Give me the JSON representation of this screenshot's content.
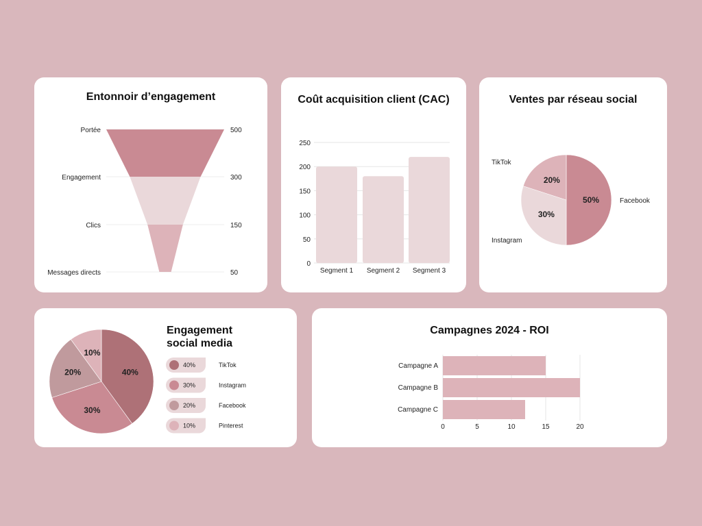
{
  "chart_data": [
    {
      "type": "funnel",
      "title": "Entonnoir d’engagement",
      "categories": [
        "Portée",
        "Engagement",
        "Clics",
        "Messages directs"
      ],
      "values": [
        500,
        300,
        150,
        50
      ],
      "colors": [
        "#c98a93",
        "#ead8da",
        "#ddb3b9",
        "#ddb3b9"
      ]
    },
    {
      "type": "bar",
      "title": "Coût acquisition client (CAC)",
      "categories": [
        "Segment 1",
        "Segment 2",
        "Segment 3"
      ],
      "values": [
        200,
        180,
        220
      ],
      "ylim": [
        0,
        250
      ],
      "yticks": [
        0,
        50,
        100,
        150,
        200,
        250
      ],
      "grid": true,
      "color": "#ead8da"
    },
    {
      "type": "pie",
      "title": "Ventes par réseau social",
      "categories": [
        "Facebook",
        "Instagram",
        "TikTok"
      ],
      "values": [
        50,
        30,
        20
      ],
      "labels": [
        "50%",
        "30%",
        "20%"
      ],
      "colors": [
        "#c98a93",
        "#ead8da",
        "#ddb3b9"
      ]
    },
    {
      "type": "pie",
      "title": "Engagement social media",
      "categories": [
        "TikTok",
        "Instagram",
        "Facebook",
        "Pinterest"
      ],
      "values": [
        40,
        30,
        20,
        10
      ],
      "labels": [
        "40%",
        "30%",
        "20%",
        "10%"
      ],
      "colors": [
        "#ae7177",
        "#c98a93",
        "#c09a9d",
        "#ddb3b9"
      ],
      "legend": "right"
    },
    {
      "type": "bar-horizontal",
      "title": "Campagnes 2024 - ROI",
      "categories": [
        "Campagne A",
        "Campagne B",
        "Campagne C"
      ],
      "values": [
        15,
        20,
        12
      ],
      "xlim": [
        0,
        20
      ],
      "xticks": [
        0,
        5,
        10,
        15,
        20
      ],
      "grid": true,
      "color": "#ddb3b9"
    }
  ]
}
